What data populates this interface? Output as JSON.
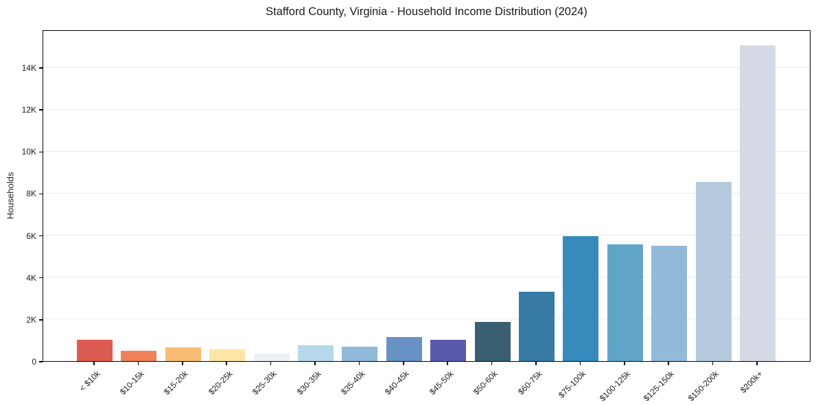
{
  "chart_data": {
    "type": "bar",
    "title": "Stafford County, Virginia - Household Income Distribution (2024)",
    "xlabel": "",
    "ylabel": "Households",
    "categories": [
      "< $10k",
      "$10-15k",
      "$15-20k",
      "$20-25k",
      "$25-30k",
      "$30-35k",
      "$35-40k",
      "$40-45k",
      "$45-50k",
      "$50-60k",
      "$60-75k",
      "$75-100k",
      "$100-125k",
      "$125-150k",
      "$150-200k",
      "$200k+"
    ],
    "values": [
      1000,
      480,
      660,
      550,
      370,
      760,
      690,
      1150,
      1030,
      1850,
      3300,
      5950,
      5550,
      5480,
      8550,
      15050
    ],
    "bar_colors": [
      "#db5a52",
      "#f08159",
      "#f9bc74",
      "#fce5a4",
      "#e8f2f5",
      "#b7d8e8",
      "#8fb8d9",
      "#6892c3",
      "#5a5aad",
      "#3a5f73",
      "#377ba5",
      "#368abc",
      "#61a6c9",
      "#92bad8",
      "#b6cade",
      "#d6d9e6"
    ],
    "ylim": [
      0,
      15800
    ],
    "yticks": {
      "values": [
        0,
        2000,
        4000,
        6000,
        8000,
        10000,
        12000,
        14000
      ],
      "labels": [
        "0",
        "2K",
        "4K",
        "6K",
        "8K",
        "10K",
        "12K",
        "14K"
      ]
    },
    "grid": "horizontal",
    "legend": "none",
    "colors": {
      "background": "#ffffff",
      "axis": "#000000",
      "gridline": "#e9e9e9",
      "text": "#1a1a1a"
    }
  }
}
